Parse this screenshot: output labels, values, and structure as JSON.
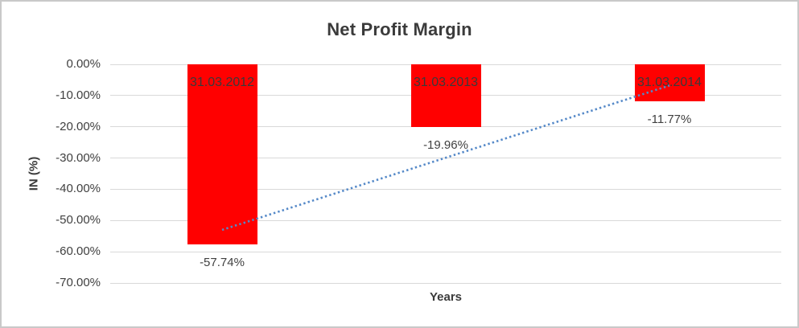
{
  "chart_data": {
    "type": "bar",
    "title": "Net Profit Margin",
    "xlabel": "Years",
    "ylabel": "IN (%)",
    "categories": [
      "31.03.2012",
      "31.03.2013",
      "31.03.2014"
    ],
    "values": [
      -57.74,
      -19.96,
      -11.77
    ],
    "value_labels": [
      "-57.74%",
      "-19.96%",
      "-11.77%"
    ],
    "ylim": [
      -70,
      0
    ],
    "ytick_values": [
      0,
      -10,
      -20,
      -30,
      -40,
      -50,
      -60,
      -70
    ],
    "ytick_labels": [
      "0.00%",
      "-10.00%",
      "-20.00%",
      "-30.00%",
      "-40.00%",
      "-50.00%",
      "-60.00%",
      "-70.00%"
    ],
    "grid": "horizontal",
    "legend": "none",
    "bar_color": "#FF0000",
    "category_label_position": "inside-top",
    "value_label_position": "below-bar",
    "trendline": {
      "type": "linear",
      "style": "dotted",
      "color": "#5589C8",
      "start_value_pct": -53.0,
      "end_value_pct": -6.8
    },
    "colors": {
      "text": "#404040",
      "title_text": "#3B3B3B",
      "gridline": "#D9D9D9",
      "frame_border": "#C9C9C9",
      "background": "#FFFFFF"
    }
  }
}
